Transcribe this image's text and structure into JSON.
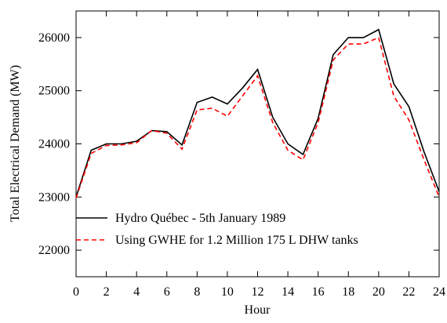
{
  "chart_data": {
    "type": "line",
    "x_label": "Hour",
    "y_label": "Total Electrical Demand (MW)",
    "x": [
      0,
      1,
      2,
      3,
      4,
      5,
      6,
      7,
      8,
      9,
      10,
      11,
      12,
      13,
      14,
      15,
      16,
      17,
      18,
      19,
      20,
      21,
      22,
      23,
      24
    ],
    "series": [
      {
        "name": "Hydro Québec - 5th January 1989",
        "color": "#000000",
        "dash": false,
        "values": [
          23000,
          23880,
          24000,
          24000,
          24050,
          24250,
          24230,
          23980,
          24780,
          24880,
          24750,
          25050,
          25400,
          24500,
          24000,
          23800,
          24480,
          25680,
          26000,
          26000,
          26150,
          25130,
          24700,
          23850,
          23100
        ]
      },
      {
        "name": "Using GWHE for 1.2 Million 175 L DHW tanks",
        "color": "#ff0000",
        "dash": true,
        "values": [
          22980,
          23820,
          23970,
          23980,
          24020,
          24250,
          24200,
          23900,
          24640,
          24670,
          24520,
          24900,
          25280,
          24400,
          23880,
          23700,
          24400,
          25580,
          25880,
          25880,
          26000,
          24900,
          24450,
          23700,
          23000
        ]
      }
    ],
    "xlim": [
      0,
      24
    ],
    "xticks": [
      0,
      2,
      4,
      6,
      8,
      10,
      12,
      14,
      16,
      18,
      20,
      22,
      24
    ],
    "ylim": [
      21500,
      26500
    ],
    "yticks": [
      22000,
      23000,
      24000,
      25000,
      26000
    ],
    "grid": false,
    "legend": "lower left"
  }
}
